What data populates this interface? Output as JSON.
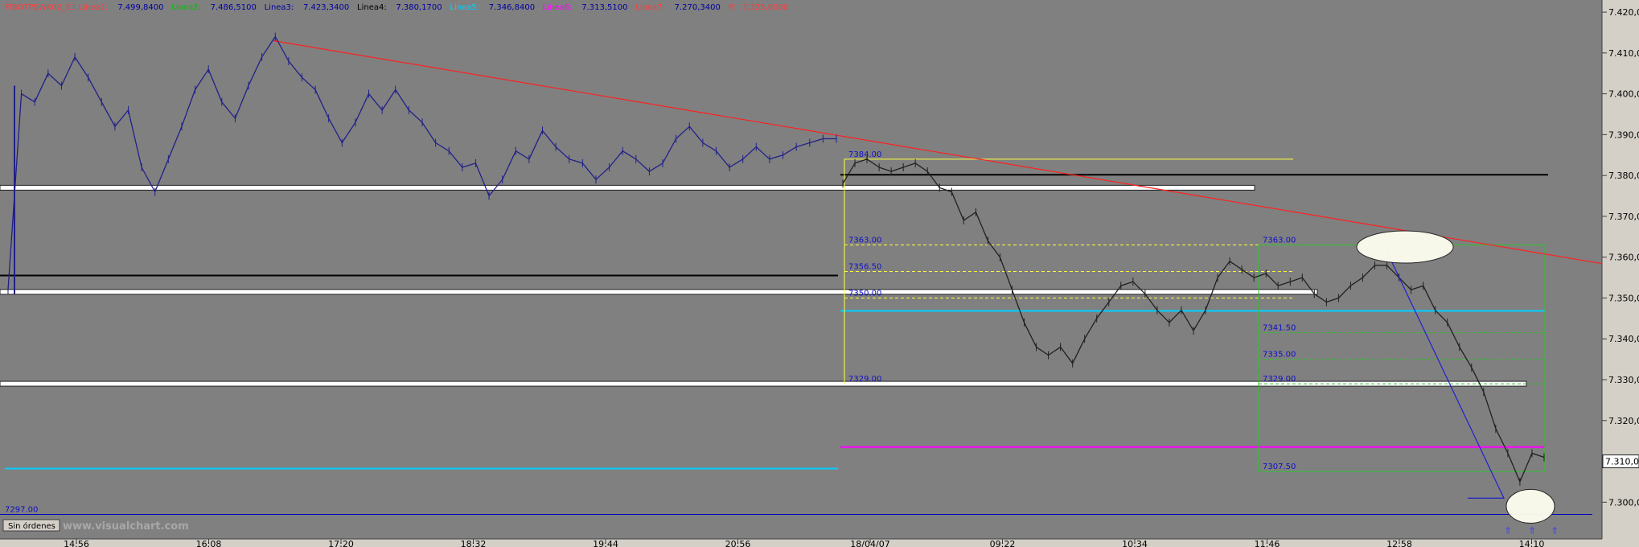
{
  "header": {
    "items": [
      {
        "text": "FIBOTPSWK02_E1",
        "color": "#ff3b3b"
      },
      {
        "text": "Linea1:",
        "color": "#ff3b3b"
      },
      {
        "text": "7.499,8400",
        "color": "#0000a0"
      },
      {
        "text": "Linea2:",
        "color": "#00c000"
      },
      {
        "text": "7.486,5100",
        "color": "#0000a0"
      },
      {
        "text": "Linea3:",
        "color": "#0000a0"
      },
      {
        "text": "7.423,3400",
        "color": "#0000a0"
      },
      {
        "text": "Linea4:",
        "color": "#000000"
      },
      {
        "text": "7.380,1700",
        "color": "#0000a0"
      },
      {
        "text": "Linea5:",
        "color": "#00d0ff"
      },
      {
        "text": "7.346,8400",
        "color": "#0000a0"
      },
      {
        "text": "Linea6:",
        "color": "#ff00ff"
      },
      {
        "text": "7.313,5100",
        "color": "#0000a0"
      },
      {
        "text": "Linea7:",
        "color": "#ff3b3b"
      },
      {
        "text": "7.270,3400",
        "color": "#0000a0"
      },
      {
        "text": "P:",
        "color": "#ff3b3b"
      },
      {
        "text": "7.325,6000",
        "color": "#ff3b3b"
      }
    ]
  },
  "chart_data": {
    "type": "line",
    "y_axis": {
      "ylim": [
        7291,
        7421
      ],
      "ticks": [
        7300,
        7310,
        7320,
        7330,
        7340,
        7350,
        7360,
        7370,
        7380,
        7390,
        7400,
        7410,
        7420
      ],
      "tick_labels": [
        "7.300,0",
        "7.310,0",
        "7.320,0",
        "7.330,0",
        "7.340,0",
        "7.350,0",
        "7.360,0",
        "7.370,0",
        "7.380,0",
        "7.390,0",
        "7.400,0",
        "7.410,0",
        "7.420,0"
      ],
      "current_price_label": "7.310,0",
      "current_price": 7310
    },
    "x_axis": {
      "tick_labels": [
        "14:56",
        "16:08",
        "17:20",
        "18:32",
        "19:44",
        "20:56",
        "18/04/07",
        "09:22",
        "10:34",
        "11:46",
        "12:58",
        "14:10"
      ]
    },
    "series": [
      {
        "color": "#20208a",
        "values": [
          7352,
          7400,
          7398,
          7405,
          7402,
          7409,
          7404,
          7398,
          7392,
          7396,
          7382,
          7376,
          7384,
          7392,
          7401,
          7406,
          7398,
          7394,
          7402,
          7409,
          7414,
          7408,
          7404,
          7401,
          7394,
          7388,
          7393,
          7400,
          7396,
          7401,
          7396,
          7393,
          7388,
          7386,
          7382,
          7383,
          7375,
          7379,
          7386,
          7384,
          7391,
          7387,
          7384,
          7383,
          7379,
          7382,
          7386,
          7384,
          7381,
          7383,
          7389,
          7392,
          7388,
          7386,
          7382,
          7384,
          7387,
          7384,
          7385,
          7387,
          7388,
          7389,
          7389
        ]
      },
      {
        "color": "#202020",
        "values": [
          7378,
          7383,
          7384,
          7382,
          7381,
          7382,
          7383,
          7381,
          7377,
          7376,
          7369,
          7371,
          7364,
          7360,
          7352,
          7344,
          7338,
          7336,
          7338,
          7334,
          7340,
          7345,
          7349,
          7353,
          7354,
          7351,
          7347,
          7344,
          7347,
          7342,
          7347,
          7355,
          7359,
          7357,
          7355,
          7356,
          7353,
          7354,
          7355,
          7351,
          7349,
          7350,
          7353,
          7355,
          7358,
          7358,
          7355,
          7352,
          7353,
          7347,
          7344,
          7338,
          7333,
          7327,
          7318,
          7312,
          7305,
          7312,
          7311
        ]
      }
    ],
    "horizontal_levels": [
      {
        "value": 7380.17,
        "color": "#000000"
      },
      {
        "value": 7377.0,
        "color": "#ffffff"
      },
      {
        "value": 7355.5,
        "color": "#000000"
      },
      {
        "value": 7351.5,
        "color": "#ffffff"
      },
      {
        "value": 7346.84,
        "color": "#00d0ff"
      },
      {
        "value": 7329.0,
        "color": "#ffffff"
      },
      {
        "value": 7313.51,
        "color": "#ff00ff"
      },
      {
        "value": 7297.0,
        "color": "#0000c0"
      }
    ],
    "trendline": {
      "from_value": 7413,
      "to_value": 7360,
      "color": "#ff2020"
    },
    "fib_box_1": {
      "top": 7384.0,
      "bottom": 7329.0,
      "levels": [
        7363.0,
        7356.5,
        7350.0
      ],
      "labels": [
        "7384.00",
        "7363.00",
        "7356.50",
        "7350.00",
        "7329.00"
      ]
    },
    "fib_box_2": {
      "top": 7363.0,
      "bottom": 7307.5,
      "levels": [
        7341.5,
        7335.0,
        7329.0
      ],
      "labels": [
        "7363.00",
        "7341.50",
        "7335.00",
        "7329.00",
        "7307.50"
      ]
    },
    "left_label": "7297.00"
  },
  "footer": {
    "badge": "Sin órdenes",
    "watermark": "www.visualchart.com"
  },
  "colors": {
    "background": "#808080",
    "frame": "#d4d0c8",
    "grid": "#909090",
    "label_blue": "#1010c8"
  }
}
